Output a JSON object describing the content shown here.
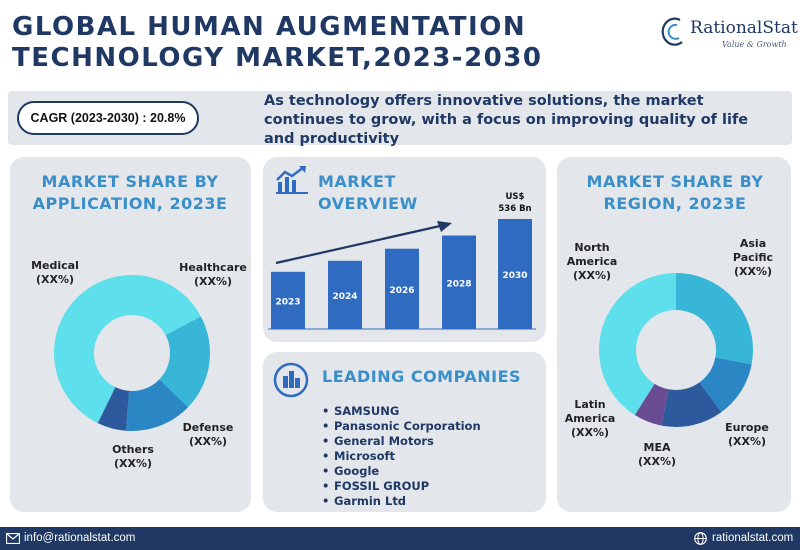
{
  "header": {
    "title_line1": "GLOBAL HUMAN AUGMENTATION",
    "title_line2": "TECHNOLOGY MARKET,2023-2030",
    "logo_name": "RationalStat",
    "logo_tagline": "Value & Growth"
  },
  "summary": {
    "cagr": "CAGR (2023-2030) : 20.8%",
    "description": "As technology offers innovative solutions, the market continues to grow, with a focus on improving quality of life and productivity"
  },
  "panels": {
    "application_title": "MARKET SHARE BY APPLICATION, 2023E",
    "overview_title": "MARKET OVERVIEW",
    "companies_title": "LEADING COMPANIES",
    "region_title": "MARKET SHARE BY REGION, 2023E"
  },
  "companies": [
    "SAMSUNG",
    "Panasonic Corporation",
    "General Motors",
    "Microsoft",
    "Google",
    "FOSSIL GROUP",
    "Garmin Ltd"
  ],
  "footer": {
    "email": "info@rationalstat.com",
    "website": "rationalstat.com"
  },
  "colors": {
    "navy": "#1f3864",
    "accent": "#3b8fc9",
    "bar": "#2f6bc0",
    "panel": "#e3e7ec"
  },
  "chart_data": [
    {
      "type": "pie",
      "title": "MARKET SHARE BY APPLICATION, 2023E",
      "style": "donut",
      "slices": [
        {
          "label": "Medical",
          "value_label": "(XX%)",
          "share": 60,
          "color": "#5ee0ec"
        },
        {
          "label": "Healthcare",
          "value_label": "(XX%)",
          "share": 20,
          "color": "#38b6d8"
        },
        {
          "label": "Defense",
          "value_label": "(XX%)",
          "share": 14,
          "color": "#2a87c4"
        },
        {
          "label": "Others",
          "value_label": "(XX%)",
          "share": 6,
          "color": "#2c5a9c"
        }
      ]
    },
    {
      "type": "bar",
      "title": "MARKET OVERVIEW",
      "categories": [
        "2023",
        "2024",
        "2026",
        "2028",
        "2030"
      ],
      "values": [
        0.52,
        0.62,
        0.73,
        0.85,
        1.0
      ],
      "value_scale": "relative to 2030",
      "annotation": {
        "category": "2030",
        "line1": "US$",
        "line2": "536 Bn"
      },
      "trend_arrow": true
    },
    {
      "type": "pie",
      "title": "MARKET SHARE BY REGION, 2023E",
      "style": "donut",
      "slices": [
        {
          "label": "Asia Pacific",
          "value_label": "(XX%)",
          "share": 28,
          "color": "#38b6d8"
        },
        {
          "label": "Europe",
          "value_label": "(XX%)",
          "share": 12,
          "color": "#2a87c4"
        },
        {
          "label": "MEA",
          "value_label": "(XX%)",
          "share": 13,
          "color": "#2c5a9c"
        },
        {
          "label": "Latin America",
          "value_label": "(XX%)",
          "share": 6,
          "color": "#6a4c93"
        },
        {
          "label": "North America",
          "value_label": "(XX%)",
          "share": 41,
          "color": "#5ee0ec"
        }
      ]
    }
  ]
}
